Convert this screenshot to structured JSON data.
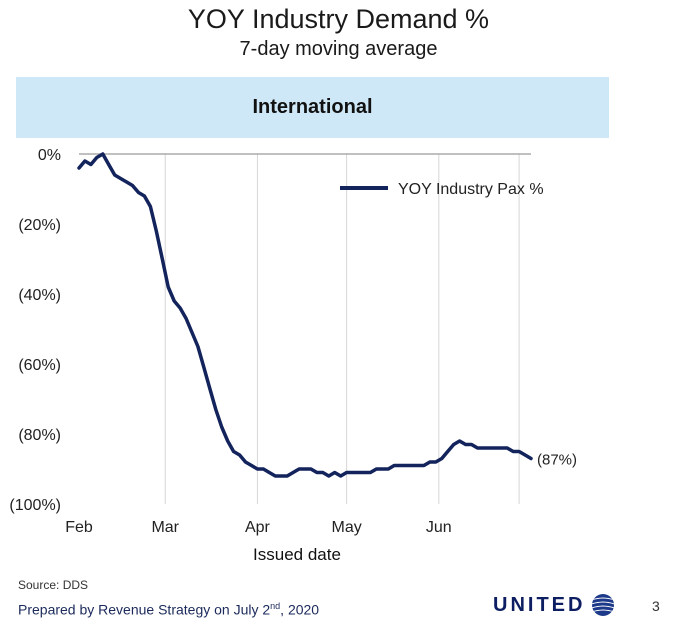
{
  "header": {
    "title": "YOY Industry Demand %",
    "subtitle": "7-day moving average"
  },
  "banner": {
    "label": "International"
  },
  "chart_data": {
    "type": "line",
    "xlabel": "Issued date",
    "ylabel": "",
    "x_tick_labels": [
      "Feb",
      "Mar",
      "Apr",
      "May",
      "Jun"
    ],
    "y_ticks": [
      0,
      -20,
      -40,
      -60,
      -80,
      -100
    ],
    "y_tick_labels": [
      "0%",
      "(20%)",
      "(40%)",
      "(60%)",
      "(80%)",
      "(100%)"
    ],
    "ylim": [
      -100,
      0
    ],
    "xlim_days": [
      0,
      152
    ],
    "x_unit": "days since Feb 1, 2020",
    "grid": "vertical",
    "legend_position": "top-right",
    "series": [
      {
        "name": "YOY Industry Pax %",
        "color": "#13235b",
        "x": [
          0,
          2,
          4,
          6,
          8,
          10,
          12,
          14,
          16,
          18,
          20,
          22,
          24,
          26,
          28,
          30,
          32,
          34,
          36,
          38,
          40,
          42,
          44,
          46,
          48,
          50,
          52,
          54,
          56,
          58,
          60,
          62,
          64,
          66,
          68,
          70,
          72,
          74,
          76,
          78,
          80,
          82,
          84,
          86,
          88,
          90,
          92,
          94,
          96,
          98,
          100,
          102,
          104,
          106,
          108,
          110,
          112,
          114,
          116,
          118,
          120,
          122,
          124,
          126,
          128,
          130,
          132,
          134,
          136,
          138,
          140,
          142,
          144,
          146,
          148,
          150,
          152
        ],
        "values": [
          -4,
          -2,
          -3,
          -1,
          0,
          -3,
          -6,
          -7,
          -8,
          -9,
          -11,
          -12,
          -15,
          -22,
          -30,
          -38,
          -42,
          -44,
          -47,
          -51,
          -55,
          -61,
          -67,
          -73,
          -78,
          -82,
          -85,
          -86,
          -88,
          -89,
          -90,
          -90,
          -91,
          -92,
          -92,
          -92,
          -91,
          -90,
          -90,
          -90,
          -91,
          -91,
          -92,
          -91,
          -92,
          -91,
          -91,
          -91,
          -91,
          -91,
          -90,
          -90,
          -90,
          -89,
          -89,
          -89,
          -89,
          -89,
          -89,
          -88,
          -88,
          -87,
          -85,
          -83,
          -82,
          -83,
          -83,
          -84,
          -84,
          -84,
          -84,
          -84,
          -84,
          -85,
          -85,
          -86,
          -87
        ]
      }
    ],
    "end_label": "(87%)"
  },
  "footer": {
    "source": "Source: DDS",
    "prepared_prefix": "Prepared by Revenue Strategy on July 2",
    "prepared_sup": "nd",
    "prepared_suffix": ", 2020",
    "logo": "UNITED",
    "logo_icon": "globe-icon",
    "page": "3"
  },
  "colors": {
    "banner": "#cfe8f7",
    "line": "#13235b",
    "grid": "#d6d6d6",
    "brand": "#0d1e62"
  }
}
